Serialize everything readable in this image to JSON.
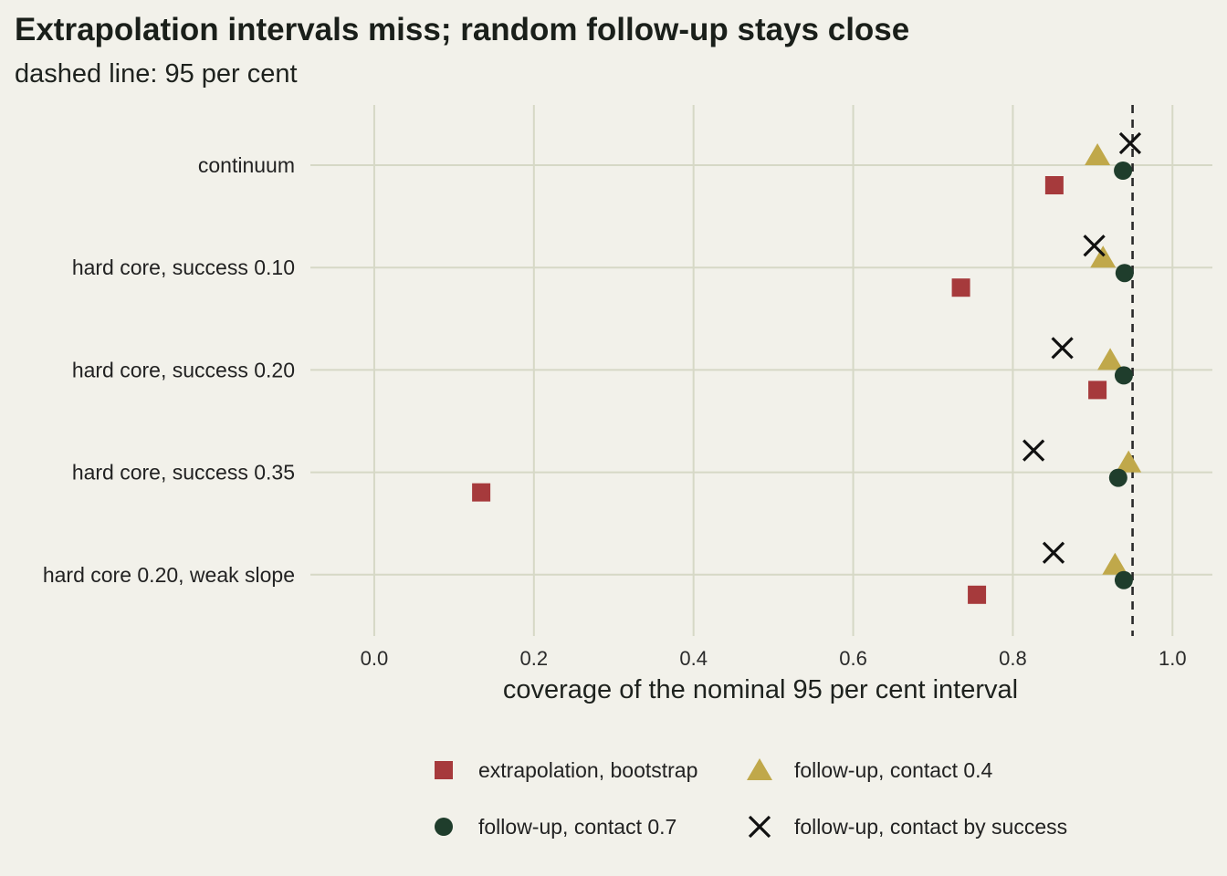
{
  "chart_data": {
    "type": "scatter",
    "title": "Extrapolation intervals miss; random follow-up stays close",
    "subtitle": "dashed line: 95 per cent",
    "xlabel": "coverage of the nominal 95 per cent interval",
    "ylabel": "",
    "xlim": [
      -0.08,
      1.05
    ],
    "x_ticks": [
      0.0,
      0.2,
      0.4,
      0.6,
      0.8,
      1.0
    ],
    "x_tick_labels": [
      "0.0",
      "0.2",
      "0.4",
      "0.6",
      "0.8",
      "1.0"
    ],
    "reference_line": 0.95,
    "grid": true,
    "legend_position": "bottom",
    "categories": [
      "continuum",
      "hard core, success 0.10",
      "hard core, success 0.20",
      "hard core, success 0.35",
      "hard core 0.20, weak slope"
    ],
    "series": [
      {
        "name": "extrapolation, bootstrap",
        "shape": "square",
        "color": "#a63a3c",
        "values": [
          0.852,
          0.735,
          0.906,
          0.134,
          0.755
        ]
      },
      {
        "name": "follow-up, contact 0.4",
        "shape": "triangle",
        "color": "#c0a84a",
        "values": [
          0.906,
          0.913,
          0.922,
          0.945,
          0.928
        ]
      },
      {
        "name": "follow-up, contact 0.7",
        "shape": "circle",
        "color": "#1f3d2c",
        "values": [
          0.938,
          0.94,
          0.939,
          0.932,
          0.939
        ]
      },
      {
        "name": "follow-up, contact by success",
        "shape": "cross",
        "color": "#111111",
        "values": [
          0.947,
          0.902,
          0.862,
          0.826,
          0.851
        ]
      }
    ]
  }
}
